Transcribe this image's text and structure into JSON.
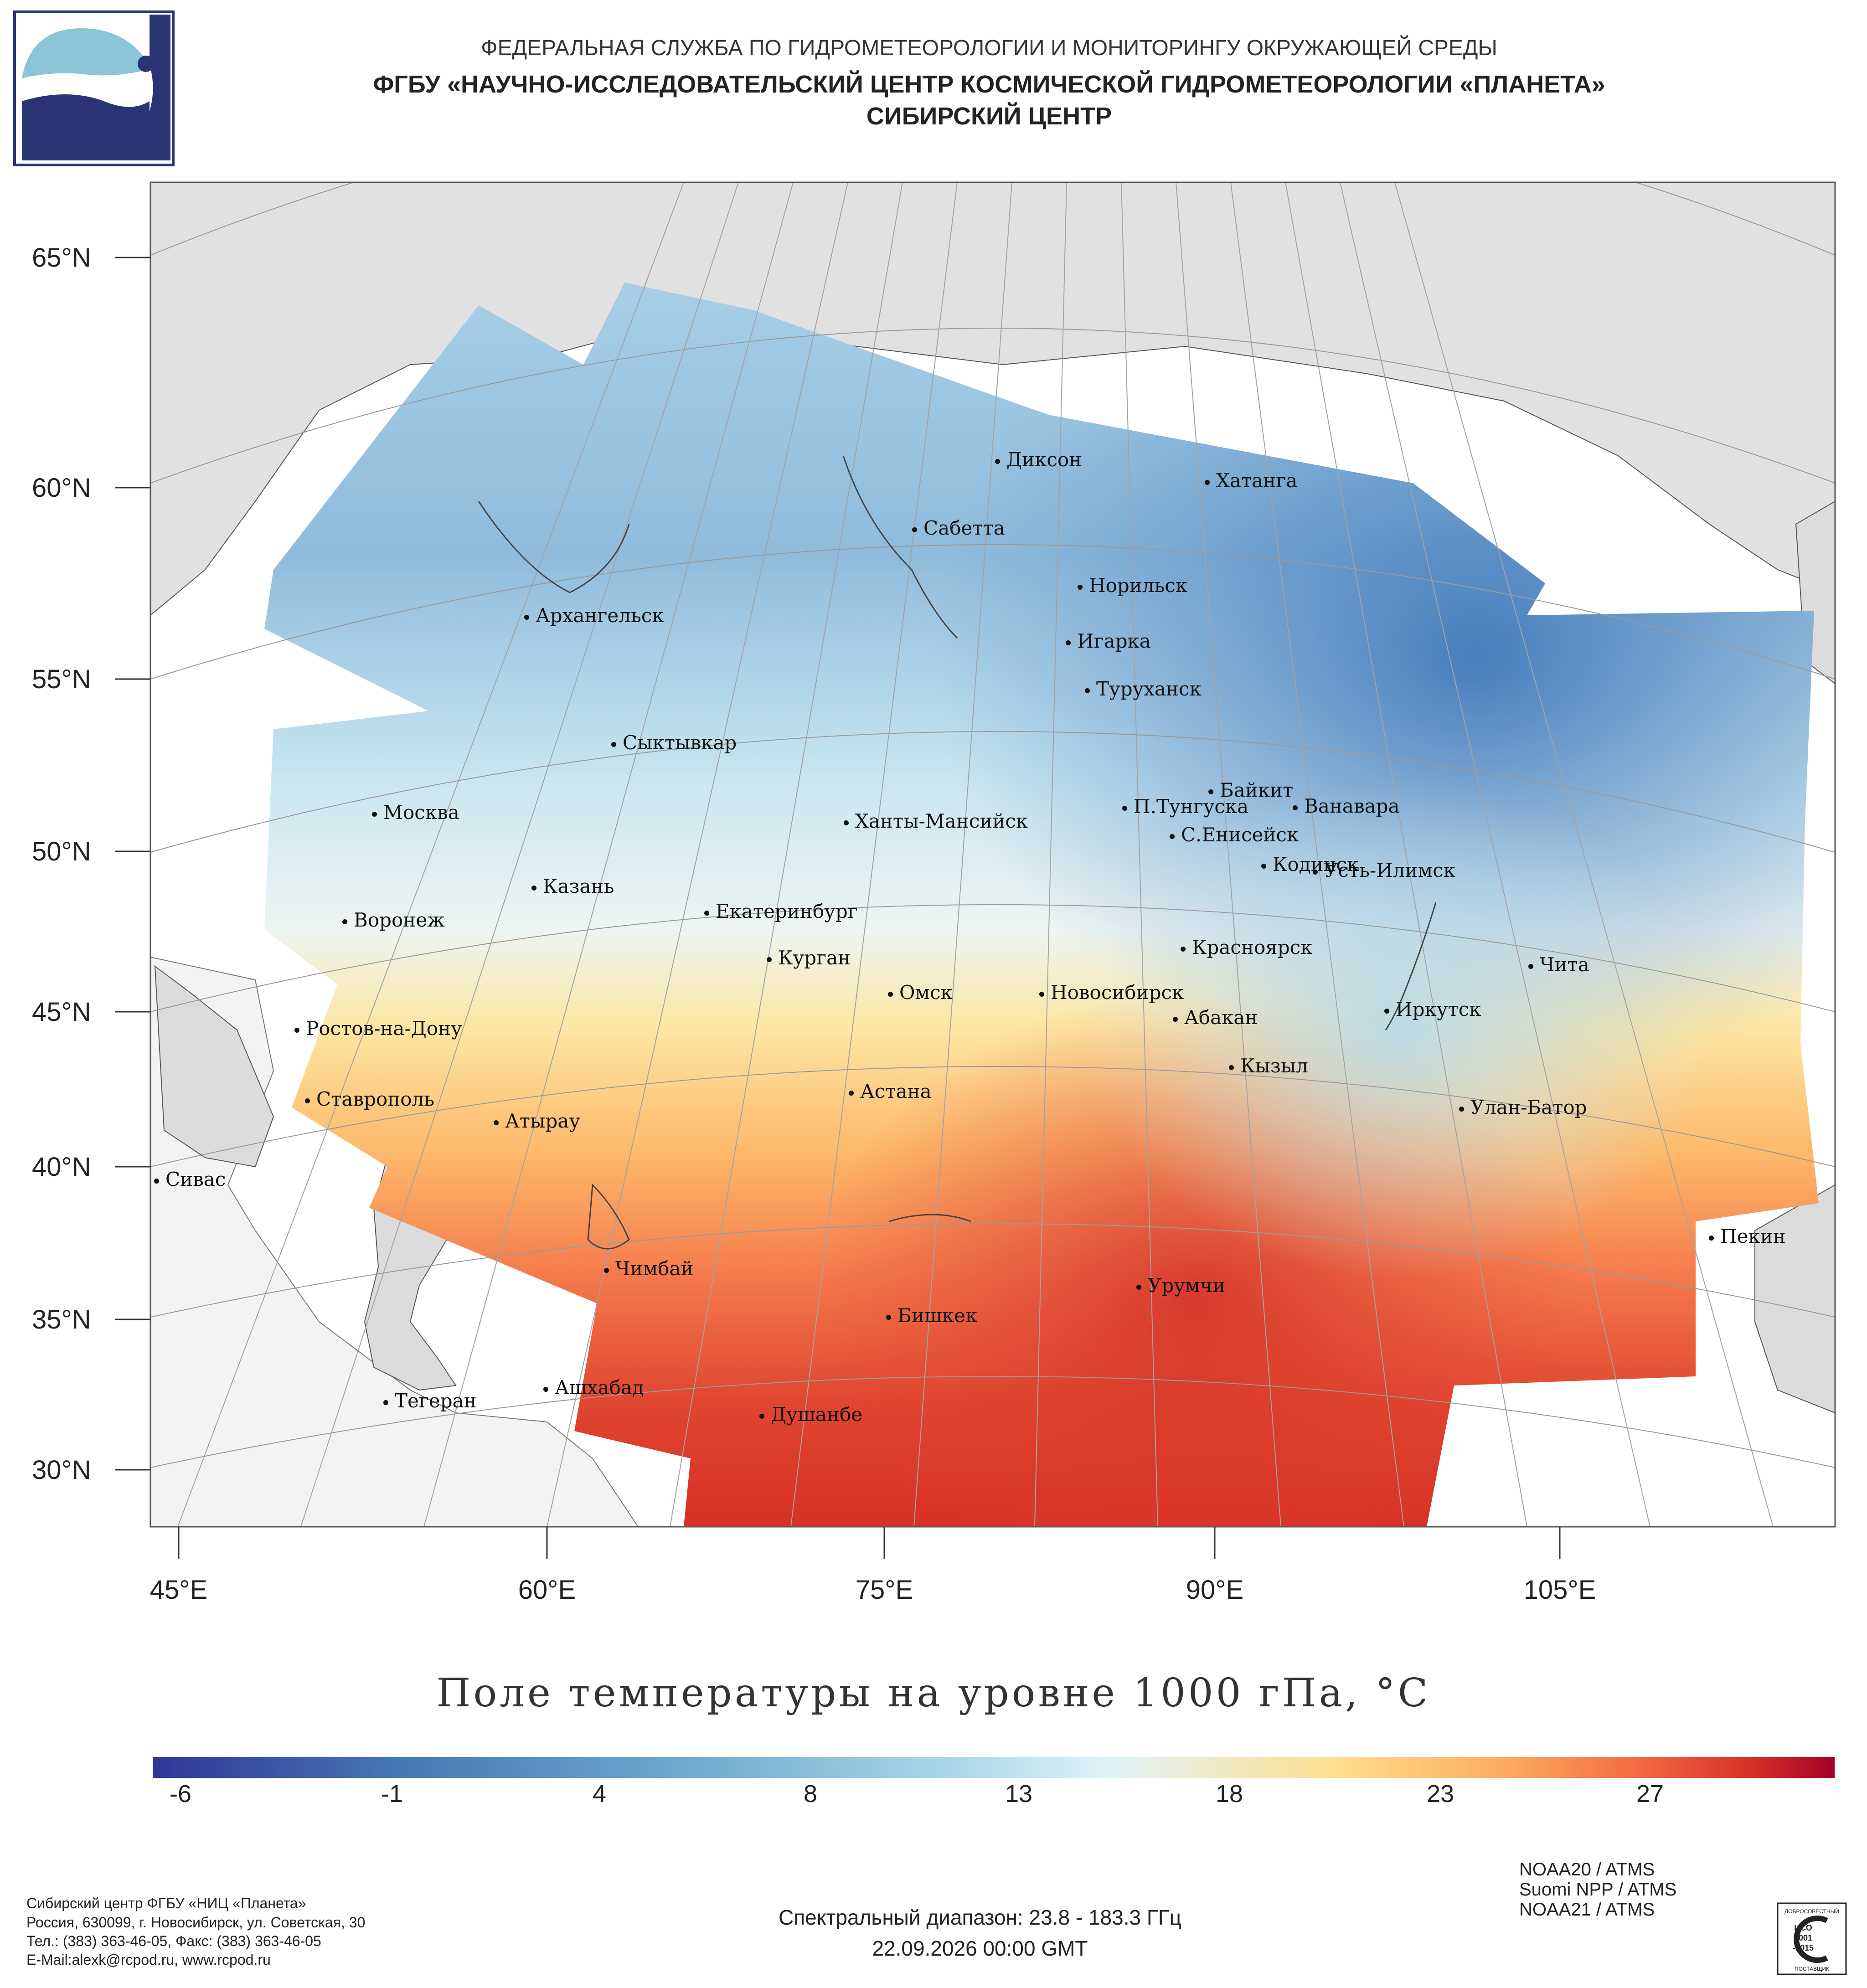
{
  "header": {
    "line1": "ФЕДЕРАЛЬНАЯ СЛУЖБА ПО ГИДРОМЕТЕОРОЛОГИИ И МОНИТОРИНГУ ОКРУЖАЮЩЕЙ СРЕДЫ",
    "line2": "ФГБУ «НАУЧНО-ИССЛЕДОВАТЕЛЬСКИЙ ЦЕНТР КОСМИЧЕСКОЙ ГИДРОМЕТЕОРОЛОГИИ «ПЛАНЕТА»",
    "line3": "СИБИРСКИЙ ЦЕНТР"
  },
  "map": {
    "lat_labels": [
      "65°N",
      "60°N",
      "55°N",
      "50°N",
      "45°N",
      "40°N",
      "35°N",
      "30°N"
    ],
    "lon_labels": [
      "45°E",
      "60°E",
      "75°E",
      "90°E",
      "105°E"
    ],
    "cities": [
      "Диксон",
      "Хатанга",
      "Сабетта",
      "Норильск",
      "Архангельск",
      "Игарка",
      "Туруханск",
      "Сыктывкар",
      "Байкит",
      "Москва",
      "П.Тунгуска",
      "Ванавара",
      "Ханты-Мансийск",
      "С.Енисейск",
      "Кодинск",
      "Усть-Илимск",
      "Казань",
      "Воронеж",
      "Екатеринбург",
      "Красноярск",
      "Курган",
      "Чита",
      "Омск",
      "Новосибирск",
      "Ростов-на-Дону",
      "Иркутск",
      "Абакан",
      "Кызыл",
      "Ставрополь",
      "Астана",
      "Улан-Батор",
      "Атырау",
      "Сивас",
      "Пекин",
      "Чимбай",
      "Урумчи",
      "Бишкек",
      "Ашхабад",
      "Тегеран",
      "Душанбе"
    ],
    "land_color": "#e1e1e1",
    "sea_color": "#ffffff"
  },
  "title": "Поле температуры на уровне 1000 гПа, °C",
  "colorbar": {
    "ticks": [
      "-6",
      "-1",
      "4",
      "8",
      "13",
      "18",
      "23",
      "27"
    ],
    "colors": [
      "#313695",
      "#4575b4",
      "#74add1",
      "#abd9e9",
      "#e0f3f8",
      "#fee090",
      "#fdae61",
      "#f46d43",
      "#d73027",
      "#a50026"
    ]
  },
  "footer_left": [
    "Сибирский центр ФГБУ «НИЦ «Планета»",
    "Россия, 630099, г. Новосибирск, ул. Советская, 30",
    "Тел.: (383) 363-46-05, Факс: (383) 363-46-05",
    "E-Mail:alexk@rcpod.ru, www.rcpod.ru"
  ],
  "footer_center": {
    "spectral": "Спектральный диапазон: 23.8 - 183.3 ГГц",
    "datetime": "22.09.2026 00:00 GMT"
  },
  "satellites": [
    "NOAA20 / ATMS",
    "Suomi NPP / ATMS",
    "NOAA21 / ATMS"
  ],
  "iso_badge": {
    "top": "ДОБРОСОВЕСТНЫЙ",
    "l1": "ИСО",
    "l2": "9001",
    "l3": "-2015",
    "bottom": "ПОСТАВЩИК"
  }
}
